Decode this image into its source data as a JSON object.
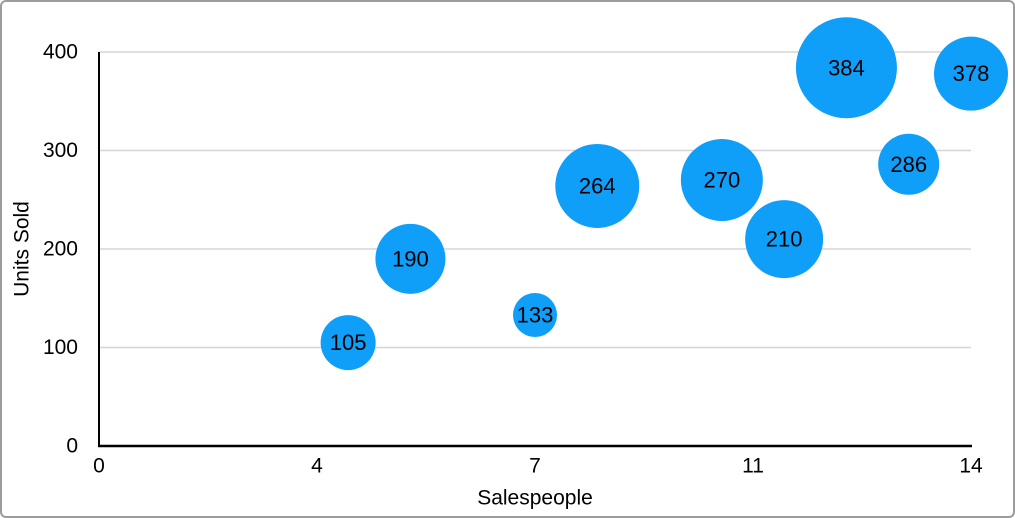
{
  "chart_data": {
    "type": "bubble",
    "title": "",
    "xlabel": "Salespeople",
    "ylabel": "Units Sold",
    "xlim": [
      0,
      14
    ],
    "ylim": [
      0,
      400
    ],
    "grid": "horizontal",
    "legend": "none",
    "x_ticks": [
      {
        "value": 0,
        "label": "0"
      },
      {
        "value": 3.5,
        "label": "4"
      },
      {
        "value": 7,
        "label": "7"
      },
      {
        "value": 10.5,
        "label": "11"
      },
      {
        "value": 14,
        "label": "14"
      }
    ],
    "y_ticks": [
      {
        "value": 0,
        "label": "0"
      },
      {
        "value": 100,
        "label": "100"
      },
      {
        "value": 200,
        "label": "200"
      },
      {
        "value": 300,
        "label": "300"
      },
      {
        "value": 400,
        "label": "400"
      }
    ],
    "points": [
      {
        "x": 4,
        "y": 105,
        "label": "105",
        "r": 27.5
      },
      {
        "x": 5,
        "y": 190,
        "label": "190",
        "r": 35
      },
      {
        "x": 7,
        "y": 133,
        "label": "133",
        "r": 22
      },
      {
        "x": 8,
        "y": 264,
        "label": "264",
        "r": 42
      },
      {
        "x": 10,
        "y": 270,
        "label": "270",
        "r": 41
      },
      {
        "x": 11,
        "y": 210,
        "label": "210",
        "r": 39
      },
      {
        "x": 12,
        "y": 384,
        "label": "384",
        "r": 50.5
      },
      {
        "x": 13,
        "y": 286,
        "label": "286",
        "r": 30.5
      },
      {
        "x": 14,
        "y": 378,
        "label": "378",
        "r": 37
      }
    ],
    "colors": {
      "bubble": "#0F9EF8",
      "gridline": "#D5D5D5",
      "axis": "#000000",
      "text": "#000000",
      "frame_border": "#9C9C9C",
      "background": "#FFFFFF"
    }
  }
}
